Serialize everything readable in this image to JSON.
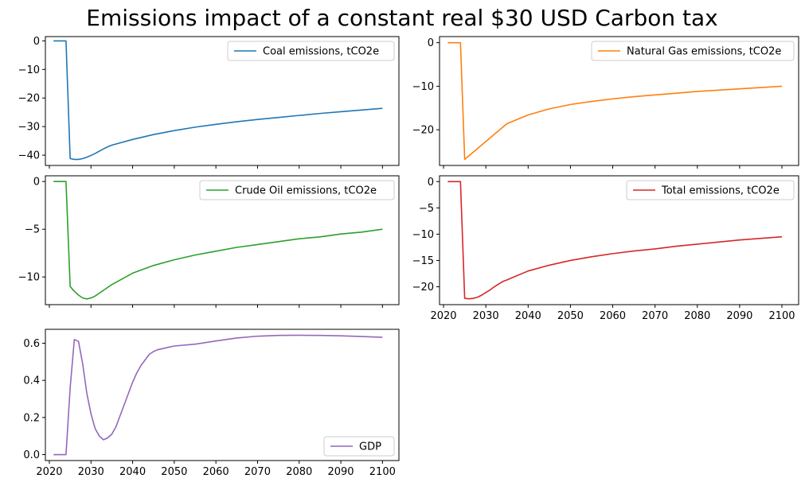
{
  "figure": {
    "title": "Emissions impact of a constant real $30 USD Carbon tax"
  },
  "chart_data": [
    {
      "type": "line",
      "series": [
        {
          "name": "Coal emissions, tCO2e",
          "color": "#1f77b4",
          "x": [
            2021,
            2022,
            2023,
            2024,
            2025,
            2026,
            2027,
            2028,
            2029,
            2030,
            2031,
            2032,
            2033,
            2034,
            2035,
            2040,
            2045,
            2050,
            2055,
            2060,
            2065,
            2070,
            2075,
            2080,
            2085,
            2090,
            2095,
            2100
          ],
          "y": [
            0,
            0,
            0,
            0,
            -41.2,
            -41.5,
            -41.5,
            -41.2,
            -40.7,
            -40.1,
            -39.4,
            -38.6,
            -37.8,
            -37.1,
            -36.5,
            -34.5,
            -32.8,
            -31.4,
            -30.2,
            -29.2,
            -28.3,
            -27.5,
            -26.8,
            -26.1,
            -25.4,
            -24.8,
            -24.2,
            -23.6
          ]
        }
      ],
      "xlim": [
        2019.05,
        2103.95
      ],
      "ylim": [
        -43.6,
        1.5
      ],
      "yticks": [
        0,
        -10,
        -20,
        -30,
        -40
      ],
      "yticklabels": [
        "0",
        "−10",
        "−20",
        "−30",
        "−40"
      ],
      "xticks": [
        2020,
        2030,
        2040,
        2050,
        2060,
        2070,
        2080,
        2090,
        2100
      ],
      "xticklabels": [],
      "legend": "upper right",
      "grid": false
    },
    {
      "type": "line",
      "series": [
        {
          "name": "Natural Gas emissions, tCO2e",
          "color": "#ff7f0e",
          "x": [
            2021,
            2022,
            2023,
            2024,
            2025,
            2030,
            2035,
            2040,
            2045,
            2050,
            2055,
            2060,
            2065,
            2070,
            2075,
            2080,
            2085,
            2090,
            2095,
            2100
          ],
          "y": [
            0,
            0,
            0,
            0,
            -26.8,
            -22.7,
            -18.6,
            -16.6,
            -15.2,
            -14.2,
            -13.5,
            -12.9,
            -12.4,
            -12.0,
            -11.6,
            -11.2,
            -10.9,
            -10.6,
            -10.3,
            -10.0
          ]
        }
      ],
      "xlim": [
        2019.05,
        2103.95
      ],
      "ylim": [
        -28.2,
        1.4
      ],
      "yticks": [
        0,
        -10,
        -20
      ],
      "yticklabels": [
        "0",
        "−10",
        "−20"
      ],
      "xticks": [
        2020,
        2030,
        2040,
        2050,
        2060,
        2070,
        2080,
        2090,
        2100
      ],
      "xticklabels": [],
      "legend": "upper right",
      "grid": false
    },
    {
      "type": "line",
      "series": [
        {
          "name": "Crude Oil emissions, tCO2e",
          "color": "#2ca02c",
          "x": [
            2021,
            2022,
            2023,
            2024,
            2025,
            2026,
            2027,
            2028,
            2029,
            2030,
            2031,
            2032,
            2033,
            2034,
            2035,
            2040,
            2045,
            2050,
            2055,
            2060,
            2065,
            2070,
            2075,
            2080,
            2085,
            2090,
            2095,
            2100
          ],
          "y": [
            0,
            0,
            0,
            0,
            -11.0,
            -11.5,
            -11.9,
            -12.2,
            -12.3,
            -12.2,
            -12.0,
            -11.7,
            -11.4,
            -11.1,
            -10.8,
            -9.6,
            -8.8,
            -8.2,
            -7.7,
            -7.3,
            -6.9,
            -6.6,
            -6.3,
            -6.0,
            -5.8,
            -5.5,
            -5.3,
            -5.0
          ]
        }
      ],
      "xlim": [
        2019.05,
        2103.95
      ],
      "ylim": [
        -12.9,
        0.6
      ],
      "yticks": [
        0,
        -5,
        -10
      ],
      "yticklabels": [
        "0",
        "−5",
        "−10"
      ],
      "xticks": [
        2020,
        2030,
        2040,
        2050,
        2060,
        2070,
        2080,
        2090,
        2100
      ],
      "xticklabels": [],
      "legend": "upper right",
      "grid": false
    },
    {
      "type": "line",
      "series": [
        {
          "name": "Total emissions, tCO2e",
          "color": "#d62728",
          "x": [
            2021,
            2022,
            2023,
            2024,
            2025,
            2026,
            2027,
            2028,
            2029,
            2030,
            2031,
            2032,
            2033,
            2034,
            2035,
            2040,
            2045,
            2050,
            2055,
            2060,
            2065,
            2070,
            2075,
            2080,
            2085,
            2090,
            2095,
            2100
          ],
          "y": [
            0,
            0,
            0,
            0,
            -22.2,
            -22.3,
            -22.2,
            -22.0,
            -21.6,
            -21.1,
            -20.6,
            -20.0,
            -19.5,
            -19.0,
            -18.7,
            -17.0,
            -15.9,
            -15.0,
            -14.3,
            -13.7,
            -13.2,
            -12.8,
            -12.3,
            -11.9,
            -11.5,
            -11.1,
            -10.8,
            -10.5
          ]
        }
      ],
      "xlim": [
        2019.05,
        2103.95
      ],
      "ylim": [
        -23.4,
        1.1
      ],
      "yticks": [
        0,
        -5,
        -10,
        -15,
        -20
      ],
      "yticklabels": [
        "0",
        "−5",
        "−10",
        "−15",
        "−20"
      ],
      "xticks": [
        2020,
        2030,
        2040,
        2050,
        2060,
        2070,
        2080,
        2090,
        2100
      ],
      "xticklabels": [
        "2020",
        "2030",
        "2040",
        "2050",
        "2060",
        "2070",
        "2080",
        "2090",
        "2100"
      ],
      "legend": "upper right",
      "grid": false
    },
    {
      "type": "line",
      "series": [
        {
          "name": "GDP",
          "color": "#9467bd",
          "x": [
            2021,
            2022,
            2023,
            2024,
            2025,
            2026,
            2027,
            2028,
            2029,
            2030,
            2031,
            2032,
            2033,
            2034,
            2035,
            2036,
            2037,
            2038,
            2039,
            2040,
            2041,
            2042,
            2043,
            2044,
            2045,
            2046,
            2048,
            2050,
            2055,
            2060,
            2065,
            2070,
            2075,
            2080,
            2085,
            2090,
            2095,
            2100
          ],
          "y": [
            0,
            0,
            0,
            0,
            0.36,
            0.62,
            0.61,
            0.49,
            0.33,
            0.22,
            0.14,
            0.1,
            0.08,
            0.09,
            0.11,
            0.15,
            0.21,
            0.27,
            0.33,
            0.39,
            0.44,
            0.48,
            0.51,
            0.54,
            0.555,
            0.565,
            0.575,
            0.585,
            0.595,
            0.612,
            0.628,
            0.638,
            0.642,
            0.643,
            0.642,
            0.64,
            0.636,
            0.632
          ]
        }
      ],
      "xlim": [
        2019.05,
        2103.95
      ],
      "ylim": [
        -0.032,
        0.675
      ],
      "yticks": [
        0,
        0.2,
        0.4,
        0.6
      ],
      "yticklabels": [
        "0.0",
        "0.2",
        "0.4",
        "0.6"
      ],
      "xticks": [
        2020,
        2030,
        2040,
        2050,
        2060,
        2070,
        2080,
        2090,
        2100
      ],
      "xticklabels": [
        "2020",
        "2030",
        "2040",
        "2050",
        "2060",
        "2070",
        "2080",
        "2090",
        "2100"
      ],
      "legend": "lower right",
      "grid": false
    }
  ]
}
